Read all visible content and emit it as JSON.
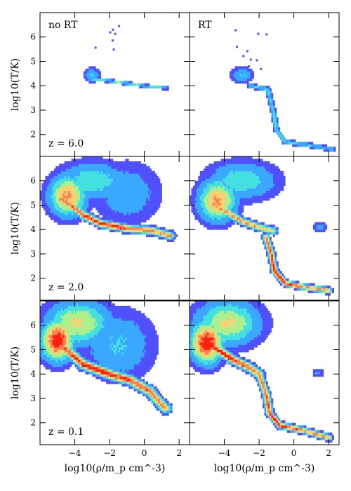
{
  "chart_data": {
    "type": "heatmap",
    "description_rows": [
      "z = 6.0",
      "z = 2.0",
      "z = 0.1"
    ],
    "columns": [
      "no RT",
      "RT"
    ],
    "xlabel": "log10(ρ/m_p cm^-3)",
    "ylabel": "log10(T/K)",
    "xlim": [
      -6.0,
      2.6
    ],
    "ylim": [
      1.1,
      7.0
    ],
    "xticks": [
      -4,
      -2,
      0,
      2
    ],
    "xtick_labels": [
      "−4",
      "−2",
      "0",
      "2"
    ],
    "yticks": [
      2,
      3,
      4,
      5,
      6
    ],
    "ytick_labels": [
      "2",
      "3",
      "4",
      "5",
      "6"
    ],
    "colormap": [
      "#5050ff",
      "#3aa8ff",
      "#45e0e0",
      "#a8f090",
      "#ffd070",
      "#ff8050",
      "#ff2010"
    ],
    "panels": [
      {
        "row": 0,
        "col": 0,
        "column_label": "no RT",
        "redshift_label": "z = 6.0",
        "features": [
          {
            "kind": "track",
            "points": [
              [
                -3.2,
                4.3
              ],
              [
                -2.0,
                4.2
              ],
              [
                0.0,
                4.0
              ],
              [
                1.3,
                3.9
              ]
            ],
            "intensity": 0.45,
            "spread": 0.06
          },
          {
            "kind": "blob",
            "x": -3.0,
            "y": 4.45,
            "intensity": 0.3,
            "sx": 0.3,
            "sy": 0.18
          },
          {
            "kind": "scatter",
            "x_range": [
              -3.5,
              -1.0
            ],
            "y_range": [
              4.6,
              6.5
            ],
            "count": 8
          }
        ]
      },
      {
        "row": 0,
        "col": 1,
        "column_label": "RT",
        "redshift_label": "",
        "features": [
          {
            "kind": "blob",
            "x": -3.0,
            "y": 4.45,
            "intensity": 0.3,
            "sx": 0.4,
            "sy": 0.2
          },
          {
            "kind": "track",
            "points": [
              [
                -2.5,
                4.0
              ],
              [
                -1.5,
                3.85
              ],
              [
                -1.2,
                3.0
              ],
              [
                -1.0,
                2.2
              ],
              [
                -0.5,
                1.7
              ],
              [
                1.0,
                1.55
              ],
              [
                2.2,
                1.4
              ]
            ],
            "intensity": 0.35,
            "spread": 0.1
          },
          {
            "kind": "scatter",
            "x_range": [
              -3.5,
              -1.5
            ],
            "y_range": [
              4.7,
              6.5
            ],
            "count": 10
          }
        ]
      },
      {
        "row": 1,
        "col": 0,
        "column_label": "",
        "redshift_label": "z = 2.0",
        "features": [
          {
            "kind": "blob",
            "x": -4.4,
            "y": 5.4,
            "intensity": 0.75,
            "sx": 0.7,
            "sy": 0.55
          },
          {
            "kind": "blob",
            "x": -3.0,
            "y": 6.0,
            "intensity": 0.4,
            "sx": 1.3,
            "sy": 0.5
          },
          {
            "kind": "track",
            "points": [
              [
                -4.8,
                5.3
              ],
              [
                -3.5,
                4.6
              ],
              [
                -2.5,
                4.25
              ],
              [
                -1.0,
                4.05
              ],
              [
                0.5,
                3.95
              ],
              [
                1.5,
                3.75
              ]
            ],
            "intensity": 0.95,
            "spread": 0.16
          },
          {
            "kind": "blob",
            "x": -1.0,
            "y": 5.5,
            "intensity": 0.25,
            "sx": 1.2,
            "sy": 0.8
          }
        ]
      },
      {
        "row": 1,
        "col": 1,
        "column_label": "",
        "redshift_label": "z = 2.0",
        "features": [
          {
            "kind": "blob",
            "x": -4.4,
            "y": 5.2,
            "intensity": 0.75,
            "sx": 0.7,
            "sy": 0.55
          },
          {
            "kind": "blob",
            "x": -3.0,
            "y": 6.0,
            "intensity": 0.4,
            "sx": 1.3,
            "sy": 0.5
          },
          {
            "kind": "track",
            "points": [
              [
                -4.5,
                5.0
              ],
              [
                -3.0,
                4.35
              ],
              [
                -2.0,
                4.1
              ],
              [
                -1.2,
                3.95
              ]
            ],
            "intensity": 0.8,
            "spread": 0.15
          },
          {
            "kind": "track",
            "points": [
              [
                -1.6,
                3.7
              ],
              [
                -1.3,
                3.0
              ],
              [
                -1.1,
                2.3
              ],
              [
                -0.5,
                1.8
              ],
              [
                0.5,
                1.65
              ],
              [
                2.0,
                1.5
              ]
            ],
            "intensity": 0.95,
            "spread": 0.12
          },
          {
            "kind": "blob",
            "x": 1.5,
            "y": 4.1,
            "intensity": 0.2,
            "sx": 0.25,
            "sy": 0.15
          }
        ]
      },
      {
        "row": 2,
        "col": 0,
        "column_label": "",
        "redshift_label": "z = 0.1",
        "features": [
          {
            "kind": "blob",
            "x": -5.0,
            "y": 5.4,
            "intensity": 1.0,
            "sx": 0.6,
            "sy": 0.55
          },
          {
            "kind": "blob",
            "x": -3.8,
            "y": 6.1,
            "intensity": 0.6,
            "sx": 1.2,
            "sy": 0.6
          },
          {
            "kind": "track",
            "points": [
              [
                -5.0,
                5.3
              ],
              [
                -3.5,
                4.4
              ],
              [
                -2.0,
                4.0
              ],
              [
                -0.8,
                3.75
              ],
              [
                0.3,
                3.3
              ],
              [
                1.2,
                2.6
              ]
            ],
            "intensity": 1.0,
            "spread": 0.2
          },
          {
            "kind": "blob",
            "x": -1.5,
            "y": 5.2,
            "intensity": 0.3,
            "sx": 1.3,
            "sy": 0.9
          }
        ]
      },
      {
        "row": 2,
        "col": 1,
        "column_label": "",
        "redshift_label": "",
        "features": [
          {
            "kind": "blob",
            "x": -5.0,
            "y": 5.3,
            "intensity": 1.0,
            "sx": 0.6,
            "sy": 0.55
          },
          {
            "kind": "blob",
            "x": -3.8,
            "y": 6.1,
            "intensity": 0.6,
            "sx": 1.2,
            "sy": 0.6
          },
          {
            "kind": "track",
            "points": [
              [
                -4.8,
                5.2
              ],
              [
                -3.5,
                4.6
              ],
              [
                -2.5,
                4.25
              ],
              [
                -2.0,
                4.0
              ]
            ],
            "intensity": 1.0,
            "spread": 0.18
          },
          {
            "kind": "track",
            "points": [
              [
                -2.0,
                4.0
              ],
              [
                -1.6,
                3.2
              ],
              [
                -1.4,
                2.4
              ],
              [
                -0.8,
                1.9
              ],
              [
                0.5,
                1.7
              ],
              [
                2.0,
                1.4
              ]
            ],
            "intensity": 0.95,
            "spread": 0.13
          },
          {
            "kind": "blob",
            "x": 1.4,
            "y": 4.05,
            "intensity": 0.2,
            "sx": 0.2,
            "sy": 0.12
          }
        ]
      }
    ]
  }
}
